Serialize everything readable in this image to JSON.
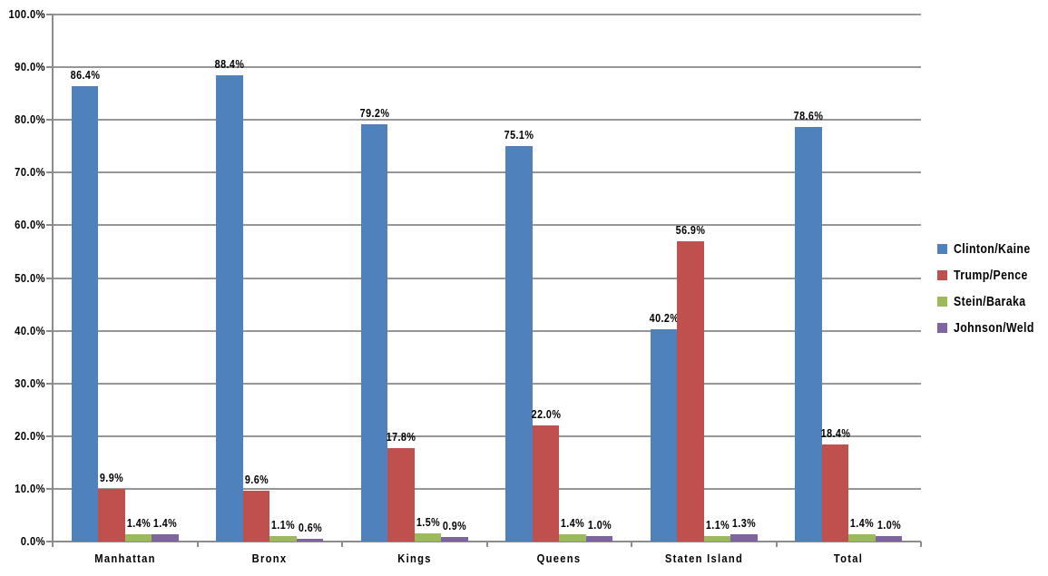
{
  "chart_data": {
    "type": "bar",
    "title": "",
    "xlabel": "",
    "ylabel": "",
    "categories": [
      "Manhattan",
      "Bronx",
      "Kings",
      "Queens",
      "Staten Island",
      "Total"
    ],
    "series": [
      {
        "name": "Clinton/Kaine",
        "color": "#4F81BD",
        "values": [
          86.4,
          88.4,
          79.2,
          75.1,
          40.2,
          78.6
        ],
        "labels": [
          "86.4%",
          "88.4%",
          "79.2%",
          "75.1%",
          "40.2%",
          "78.6%"
        ]
      },
      {
        "name": "Trump/Pence",
        "color": "#C0504D",
        "values": [
          9.9,
          9.6,
          17.8,
          22.0,
          56.9,
          18.4
        ],
        "labels": [
          "9.9%",
          "9.6%",
          "17.8%",
          "22.0%",
          "56.9%",
          "18.4%"
        ]
      },
      {
        "name": "Stein/Baraka",
        "color": "#9BBB59",
        "values": [
          1.4,
          1.1,
          1.5,
          1.4,
          1.1,
          1.4
        ],
        "labels": [
          "1.4%",
          "1.1%",
          "1.5%",
          "1.4%",
          "1.1%",
          "1.4%"
        ]
      },
      {
        "name": "Johnson/Weld",
        "color": "#8064A2",
        "values": [
          1.4,
          0.6,
          0.9,
          1.0,
          1.3,
          1.0
        ],
        "labels": [
          "1.4%",
          "0.6%",
          "0.9%",
          "1.0%",
          "1.3%",
          "1.0%"
        ]
      }
    ],
    "y_axis": {
      "min": 0,
      "max": 100,
      "step": 10,
      "tick_labels": [
        "0.0%",
        "10.0%",
        "20.0%",
        "30.0%",
        "40.0%",
        "50.0%",
        "60.0%",
        "70.0%",
        "80.0%",
        "90.0%",
        "100.0%"
      ]
    },
    "legend": {
      "position": "right",
      "entries": [
        "Clinton/Kaine",
        "Trump/Pence",
        "Stein/Baraka",
        "Johnson/Weld"
      ]
    },
    "grid": true,
    "data_labels": true,
    "colors": {
      "gridline": "#969696",
      "axis": "#8C8C8C",
      "background": "#FFFFFF",
      "label_text": "#000000"
    }
  }
}
